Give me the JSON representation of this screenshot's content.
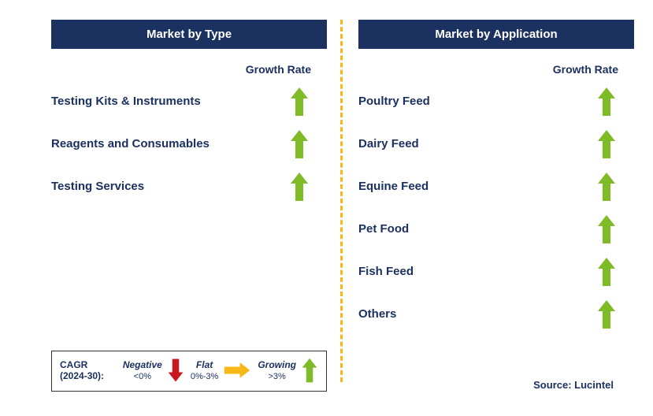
{
  "colors": {
    "header_bg": "#1b3160",
    "header_text": "#ffffff",
    "text": "#1b3160",
    "arrow_up": "#7fba27",
    "arrow_down": "#c8191e",
    "arrow_right": "#f7b715",
    "divider": "#f7b715",
    "legend_border": "#333333",
    "background": "#ffffff"
  },
  "left_panel": {
    "title": "Market by Type",
    "growth_label": "Growth Rate",
    "rows": [
      {
        "label": "Testing Kits & Instruments",
        "growth": "up"
      },
      {
        "label": "Reagents and Consumables",
        "growth": "up"
      },
      {
        "label": "Testing Services",
        "growth": "up"
      }
    ]
  },
  "right_panel": {
    "title": "Market by Application",
    "growth_label": "Growth Rate",
    "rows": [
      {
        "label": "Poultry Feed",
        "growth": "up"
      },
      {
        "label": "Dairy Feed",
        "growth": "up"
      },
      {
        "label": "Equine Feed",
        "growth": "up"
      },
      {
        "label": "Pet Food",
        "growth": "up"
      },
      {
        "label": "Fish Feed",
        "growth": "up"
      },
      {
        "label": "Others",
        "growth": "up"
      }
    ]
  },
  "legend": {
    "left_line1": "CAGR",
    "left_line2": "(2024-30):",
    "items": [
      {
        "label": "Negative",
        "range": "<0%",
        "arrow": "down-red"
      },
      {
        "label": "Flat",
        "range": "0%-3%",
        "arrow": "right-yellow"
      },
      {
        "label": "Growing",
        "range": ">3%",
        "arrow": "up-green"
      }
    ]
  },
  "source_label": "Source: Lucintel"
}
